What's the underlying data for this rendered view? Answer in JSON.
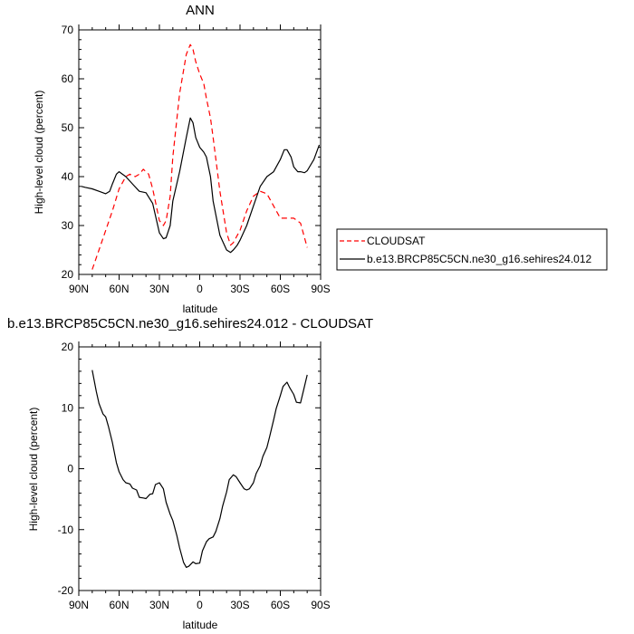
{
  "chart_data": [
    {
      "type": "line",
      "title": "ANN",
      "xlabel": "latitude",
      "ylabel": "High-level cloud (percent)",
      "xlim": [
        90,
        -90
      ],
      "ylim": [
        20,
        70
      ],
      "x_ticks": [
        90,
        60,
        30,
        0,
        -30,
        -60,
        -90
      ],
      "x_tick_labels": [
        "90N",
        "60N",
        "30N",
        "0",
        "30S",
        "60S",
        "90S"
      ],
      "y_ticks": [
        20,
        30,
        40,
        50,
        60,
        70
      ],
      "y_tick_labels": [
        "20",
        "30",
        "40",
        "50",
        "60",
        "70"
      ],
      "legend_position": "right",
      "series": [
        {
          "name": "CLOUDSAT",
          "color": "#ff0000",
          "dash": "dashed",
          "x": [
            80,
            75,
            70,
            65,
            60,
            55,
            52,
            48,
            45,
            42,
            38,
            35,
            30,
            27,
            25,
            22,
            20,
            15,
            10,
            7,
            5,
            3,
            0,
            -3,
            -5,
            -8,
            -10,
            -15,
            -20,
            -23,
            -25,
            -28,
            -30,
            -35,
            -40,
            -45,
            -50,
            -55,
            -60,
            -65,
            -70,
            -75,
            -80
          ],
          "y": [
            21,
            25,
            29,
            33,
            37.5,
            40,
            40.5,
            40,
            40.5,
            41.5,
            40.5,
            37.5,
            31,
            30,
            31,
            36,
            44,
            57,
            65,
            67,
            66,
            63.5,
            61,
            59,
            56,
            52,
            48,
            37,
            28.5,
            26,
            26.5,
            28,
            29,
            33,
            36,
            37,
            36.5,
            34,
            31.5,
            31.5,
            31.5,
            30.5,
            25.5
          ]
        },
        {
          "name": "b.e13.BRCP85C5CN.ne30_g16.sehires24.012",
          "color": "#000000",
          "dash": "solid",
          "x": [
            88,
            85,
            80,
            75,
            70,
            67,
            65,
            62,
            60,
            55,
            50,
            45,
            40,
            35,
            30,
            27,
            25,
            22,
            20,
            15,
            10,
            7,
            5,
            3,
            0,
            -3,
            -5,
            -8,
            -10,
            -15,
            -20,
            -23,
            -25,
            -28,
            -30,
            -35,
            -40,
            -45,
            -50,
            -55,
            -60,
            -63,
            -65,
            -68,
            -70,
            -73,
            -75,
            -78,
            -80,
            -85,
            -89
          ],
          "y": [
            38,
            37.8,
            37.5,
            37,
            36.5,
            37,
            38.5,
            40.5,
            41,
            40,
            38.5,
            37,
            36.7,
            34.5,
            28.5,
            27.3,
            27.5,
            30,
            35,
            41,
            48,
            52,
            51,
            48,
            46,
            45,
            44,
            40,
            35,
            28,
            25,
            24.5,
            25,
            26,
            27,
            30,
            34,
            38,
            40,
            41,
            43.5,
            45.5,
            45.5,
            44,
            42,
            41,
            41,
            40.8,
            41.2,
            43.5,
            46.5
          ]
        }
      ]
    },
    {
      "type": "line",
      "title": "b.e13.BRCP85C5CN.ne30_g16.sehires24.012 - CLOUDSAT",
      "xlabel": "latitude",
      "ylabel": "High-level cloud (percent)",
      "xlim": [
        90,
        -90
      ],
      "ylim": [
        -20,
        20
      ],
      "x_ticks": [
        90,
        60,
        30,
        0,
        -30,
        -60,
        -90
      ],
      "x_tick_labels": [
        "90N",
        "60N",
        "30N",
        "0",
        "30S",
        "60S",
        "90S"
      ],
      "y_ticks": [
        -20,
        -10,
        0,
        10,
        20
      ],
      "y_tick_labels": [
        "-20",
        "-10",
        "0",
        "10",
        "20"
      ],
      "series": [
        {
          "color": "#000000",
          "dash": "solid",
          "x": [
            80,
            77,
            75,
            72,
            70,
            68,
            65,
            62,
            60,
            57,
            55,
            52,
            50,
            47,
            45,
            42,
            40,
            37,
            35,
            33,
            30,
            27,
            25,
            22,
            20,
            17,
            15,
            12,
            10,
            8,
            5,
            3,
            0,
            -2,
            -5,
            -7,
            -10,
            -12,
            -15,
            -17,
            -20,
            -22,
            -25,
            -27,
            -30,
            -33,
            -35,
            -37,
            -40,
            -42,
            -45,
            -47,
            -50,
            -52,
            -55,
            -57,
            -60,
            -62,
            -65,
            -67,
            -70,
            -72,
            -75,
            -77,
            -80
          ],
          "y": [
            16.2,
            12.7,
            10.7,
            9,
            8.5,
            7,
            4.3,
            1,
            -0.5,
            -1.8,
            -2.3,
            -2.5,
            -3.2,
            -3.5,
            -4.7,
            -4.8,
            -4.9,
            -4.2,
            -4.1,
            -2.6,
            -2.3,
            -3.3,
            -5.5,
            -7.5,
            -8.5,
            -11,
            -13,
            -15.4,
            -16.2,
            -16,
            -15.3,
            -15.6,
            -15.5,
            -13.5,
            -12,
            -11.5,
            -11.2,
            -10.3,
            -8.2,
            -6.2,
            -3.8,
            -1.8,
            -1,
            -1.3,
            -2.3,
            -3.3,
            -3.5,
            -3.3,
            -2.3,
            -0.8,
            0.5,
            2,
            3.5,
            5.2,
            8,
            9.9,
            12,
            13.5,
            14.2,
            13.3,
            12.2,
            10.9,
            10.8,
            12.6,
            15.4
          ]
        }
      ]
    }
  ]
}
